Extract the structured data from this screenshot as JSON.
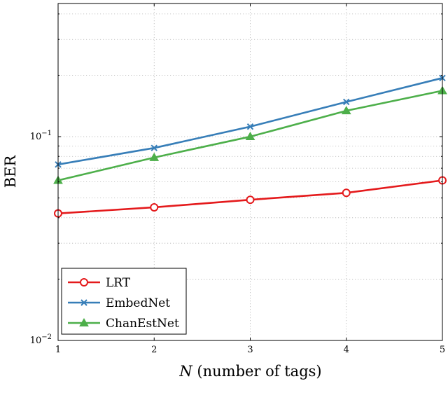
{
  "chart_data": {
    "type": "line",
    "title": "",
    "xlabel": "N (number of tags)",
    "xlabel_var": "N",
    "xlabel_rest": " (number of tags)",
    "ylabel": "BER",
    "x": [
      1,
      2,
      3,
      4,
      5
    ],
    "xlim": [
      1,
      5
    ],
    "xticks": [
      "1",
      "2",
      "3",
      "4",
      "5"
    ],
    "yscale": "log",
    "ylim": [
      0.01,
      0.45
    ],
    "yticks": [
      {
        "base": "10",
        "exp": "−2",
        "value": 0.01
      },
      {
        "base": "10",
        "exp": "−1",
        "value": 0.1
      }
    ],
    "grid": true,
    "legend_position": "bottom-left",
    "series": [
      {
        "name": "LRT",
        "color": "#e41a1c",
        "marker": "circle",
        "values": [
          0.042,
          0.045,
          0.049,
          0.053,
          0.061
        ]
      },
      {
        "name": "EmbedNet",
        "color": "#377eb8",
        "marker": "x",
        "values": [
          0.073,
          0.088,
          0.112,
          0.148,
          0.194
        ]
      },
      {
        "name": "ChanEstNet",
        "color": "#4daf4a",
        "marker": "triangle",
        "values": [
          0.061,
          0.079,
          0.1,
          0.134,
          0.168
        ]
      }
    ]
  }
}
